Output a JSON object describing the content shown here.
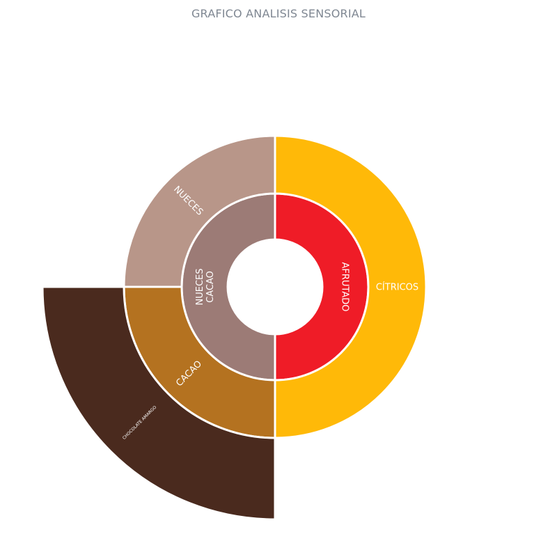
{
  "chart_data": {
    "type": "sunburst",
    "title": "GRAFICO ANALISIS SENSORIAL",
    "inner_ring": [
      {
        "label": "AFRUTADO",
        "value": 50,
        "color": "#ef1c27"
      },
      {
        "label": "NUECES\nCACAO",
        "value": 50,
        "color": "#9c7b76"
      }
    ],
    "outer_ring": [
      {
        "label": "CÍTRICOS",
        "value": 50,
        "color": "#ffb908",
        "parent": "AFRUTADO"
      },
      {
        "label": "CACAO",
        "value": 25,
        "color": "#b47220",
        "parent": "NUECES\nCACAO"
      },
      {
        "label": "NUECES",
        "value": 25,
        "color": "#b89689",
        "parent": "NUECES\nCACAO"
      }
    ],
    "extended_ring": [
      {
        "label": "CHOCOLATE AMARGO",
        "value": 25,
        "color": "#4a2a1e",
        "parent": "CACAO"
      }
    ]
  }
}
